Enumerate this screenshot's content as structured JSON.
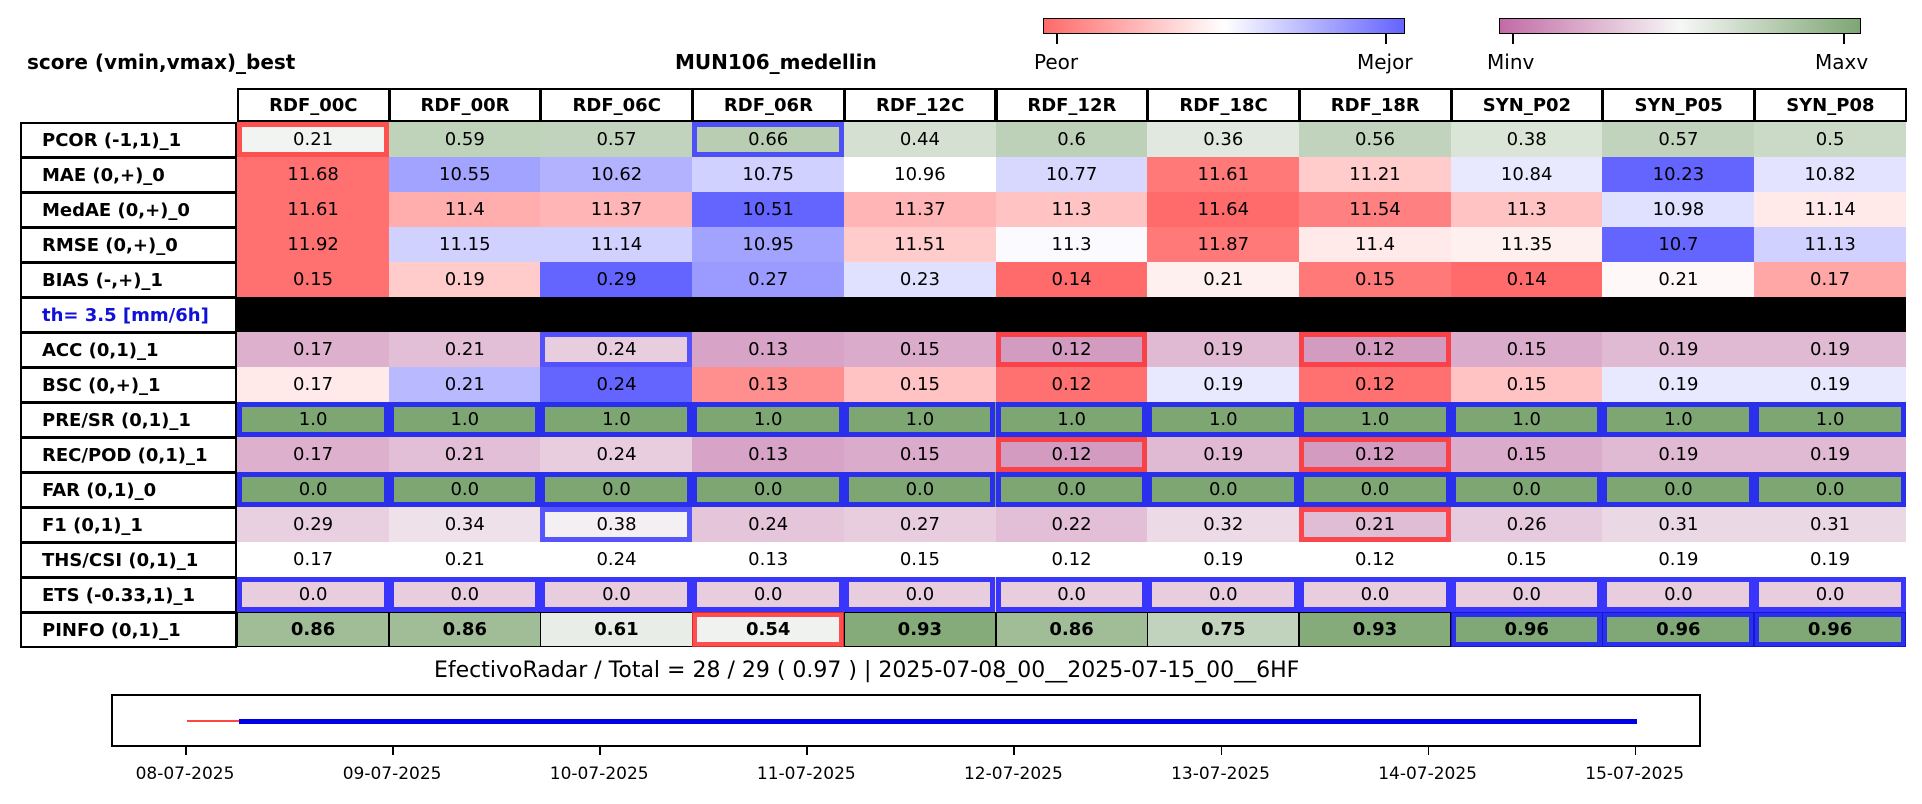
{
  "header": {
    "left_title": "score (vmin,vmax)_best",
    "center_title": "MUN106_medellin"
  },
  "colorbars": {
    "diverging": {
      "left_label": "Peor",
      "right_label": "Mejor",
      "colors": [
        "#ff6a6a",
        "#ffffff",
        "#6464ff"
      ]
    },
    "sequential": {
      "left_label": "Minv",
      "right_label": "Maxv",
      "colors": [
        "#c26ba5",
        "#f7f7f7",
        "#7ea673"
      ]
    }
  },
  "chart_data": {
    "type": "table",
    "columns": [
      "RDF_00C",
      "RDF_00R",
      "RDF_06C",
      "RDF_06R",
      "RDF_12C",
      "RDF_12R",
      "RDF_18C",
      "RDF_18R",
      "SYN_P02",
      "SYN_P05",
      "SYN_P08"
    ],
    "rows": [
      {
        "label": "PCOR (-1,1)_1",
        "values": [
          "0.21",
          "0.59",
          "0.57",
          "0.66",
          "0.44",
          "0.6",
          "0.36",
          "0.56",
          "0.38",
          "0.57",
          "0.5"
        ],
        "scale": "sequential",
        "level": [
          0.52,
          0.73,
          0.72,
          0.76,
          0.64,
          0.74,
          0.59,
          0.72,
          0.62,
          0.72,
          0.68
        ]
      },
      {
        "label": "MAE (0,+)_0",
        "values": [
          "11.68",
          "10.55",
          "10.62",
          "10.75",
          "10.96",
          "10.77",
          "11.61",
          "11.21",
          "10.84",
          "10.23",
          "10.82"
        ],
        "scale": "diverging",
        "level": [
          -0.95,
          0.6,
          0.5,
          0.3,
          0.0,
          0.25,
          -0.9,
          -0.35,
          0.15,
          1.0,
          0.18
        ]
      },
      {
        "label": "MedAE (0,+)_0",
        "values": [
          "11.61",
          "11.4",
          "11.37",
          "10.51",
          "11.37",
          "11.3",
          "11.64",
          "11.54",
          "11.3",
          "10.98",
          "11.14"
        ],
        "scale": "diverging",
        "level": [
          -0.95,
          -0.55,
          -0.5,
          1.0,
          -0.5,
          -0.4,
          -1.0,
          -0.85,
          -0.4,
          0.2,
          -0.15
        ]
      },
      {
        "label": "RMSE (0,+)_0",
        "values": [
          "11.92",
          "11.15",
          "11.14",
          "10.95",
          "11.51",
          "11.3",
          "11.87",
          "11.4",
          "11.35",
          "10.7",
          "11.13"
        ],
        "scale": "diverging",
        "level": [
          -0.95,
          0.3,
          0.3,
          0.6,
          -0.35,
          0.03,
          -0.9,
          -0.15,
          -0.1,
          1.0,
          0.3
        ]
      },
      {
        "label": "BIAS (-,+)_1",
        "values": [
          "0.15",
          "0.19",
          "0.29",
          "0.27",
          "0.23",
          "0.14",
          "0.21",
          "0.15",
          "0.14",
          "0.21",
          "0.17"
        ],
        "scale": "diverging",
        "level": [
          -0.95,
          -0.35,
          1.0,
          0.65,
          0.2,
          -1.0,
          -0.1,
          -0.9,
          -1.0,
          -0.05,
          -0.6
        ]
      },
      {
        "label": "th= 3.5 [mm/6h]",
        "values": [
          "",
          "",
          "",
          "",
          "",
          "",
          "",
          "",
          "",
          "",
          ""
        ],
        "scale": "separator",
        "level": []
      },
      {
        "label": "ACC (0,1)_1",
        "values": [
          "0.17",
          "0.21",
          "0.24",
          "0.13",
          "0.15",
          "0.12",
          "0.19",
          "0.12",
          "0.15",
          "0.19",
          "0.19"
        ],
        "scale": "sequential",
        "level": [
          0.25,
          0.3,
          0.35,
          0.2,
          0.23,
          0.17,
          0.28,
          0.17,
          0.23,
          0.28,
          0.28
        ]
      },
      {
        "label": "BSC (0,+)_1",
        "values": [
          "0.17",
          "0.21",
          "0.24",
          "0.13",
          "0.15",
          "0.12",
          "0.19",
          "0.12",
          "0.15",
          "0.19",
          "0.19"
        ],
        "scale": "diverging",
        "level": [
          -0.15,
          0.45,
          1.0,
          -0.75,
          -0.4,
          -0.95,
          0.15,
          -0.95,
          -0.4,
          0.15,
          0.15
        ]
      },
      {
        "label": "PRE/SR (0,1)_1",
        "values": [
          "1.0",
          "1.0",
          "1.0",
          "1.0",
          "1.0",
          "1.0",
          "1.0",
          "1.0",
          "1.0",
          "1.0",
          "1.0"
        ],
        "scale": "sequential",
        "level": [
          1,
          1,
          1,
          1,
          1,
          1,
          1,
          1,
          1,
          1,
          1
        ]
      },
      {
        "label": "REC/POD (0,1)_1",
        "values": [
          "0.17",
          "0.21",
          "0.24",
          "0.13",
          "0.15",
          "0.12",
          "0.19",
          "0.12",
          "0.15",
          "0.19",
          "0.19"
        ],
        "scale": "sequential",
        "level": [
          0.25,
          0.3,
          0.35,
          0.2,
          0.23,
          0.17,
          0.28,
          0.17,
          0.23,
          0.28,
          0.28
        ]
      },
      {
        "label": "FAR (0,1)_0",
        "values": [
          "0.0",
          "0.0",
          "0.0",
          "0.0",
          "0.0",
          "0.0",
          "0.0",
          "0.0",
          "0.0",
          "0.0",
          "0.0"
        ],
        "scale": "sequential",
        "level": [
          1,
          1,
          1,
          1,
          1,
          1,
          1,
          1,
          1,
          1,
          1
        ]
      },
      {
        "label": "F1 (0,1)_1",
        "values": [
          "0.29",
          "0.34",
          "0.38",
          "0.24",
          "0.27",
          "0.22",
          "0.32",
          "0.21",
          "0.26",
          "0.31",
          "0.31"
        ],
        "scale": "sequential",
        "level": [
          0.36,
          0.42,
          0.47,
          0.32,
          0.35,
          0.3,
          0.4,
          0.29,
          0.34,
          0.39,
          0.39
        ]
      },
      {
        "label": "THS/CSI (0,1)_1",
        "values": [
          "0.17",
          "0.21",
          "0.24",
          "0.13",
          "0.15",
          "0.12",
          "0.19",
          "0.12",
          "0.15",
          "0.19",
          "0.19"
        ],
        "scale": "none",
        "level": []
      },
      {
        "label": "ETS (-0.33,1)_1",
        "values": [
          "0.0",
          "0.0",
          "0.0",
          "0.0",
          "0.0",
          "0.0",
          "0.0",
          "0.0",
          "0.0",
          "0.0",
          "0.0"
        ],
        "scale": "sequential",
        "level": [
          0.35,
          0.35,
          0.35,
          0.35,
          0.35,
          0.35,
          0.35,
          0.35,
          0.35,
          0.35,
          0.35
        ]
      },
      {
        "label": "PINFO (0,1)_1",
        "values": [
          "0.86",
          "0.86",
          "0.61",
          "0.54",
          "0.93",
          "0.86",
          "0.75",
          "0.93",
          "0.96",
          "0.96",
          "0.96"
        ],
        "scale": "sequential",
        "bold": true,
        "level": [
          0.86,
          0.86,
          0.56,
          0.53,
          0.97,
          0.86,
          0.72,
          0.97,
          0.99,
          0.99,
          0.99
        ]
      }
    ],
    "highlights": [
      {
        "row": 0,
        "col": 0,
        "color": "#ff3333"
      },
      {
        "row": 0,
        "col": 3,
        "color": "#3a3aff"
      },
      {
        "row": 6,
        "col": 2,
        "color": "#3a3aff"
      },
      {
        "row": 6,
        "col": 5,
        "color": "#ff3333"
      },
      {
        "row": 6,
        "col": 7,
        "color": "#ff3333"
      },
      {
        "row": 8,
        "col": 0,
        "color": "#1a1aff"
      },
      {
        "row": 8,
        "col": 1,
        "color": "#1a1aff"
      },
      {
        "row": 8,
        "col": 2,
        "color": "#1a1aff"
      },
      {
        "row": 8,
        "col": 3,
        "color": "#1a1aff"
      },
      {
        "row": 8,
        "col": 4,
        "color": "#1a1aff"
      },
      {
        "row": 8,
        "col": 5,
        "color": "#1a1aff"
      },
      {
        "row": 8,
        "col": 6,
        "color": "#1a1aff"
      },
      {
        "row": 8,
        "col": 7,
        "color": "#1a1aff"
      },
      {
        "row": 8,
        "col": 8,
        "color": "#1a1aff"
      },
      {
        "row": 8,
        "col": 9,
        "color": "#1a1aff"
      },
      {
        "row": 8,
        "col": 10,
        "color": "#1a1aff"
      },
      {
        "row": 9,
        "col": 5,
        "color": "#ff3333"
      },
      {
        "row": 9,
        "col": 7,
        "color": "#ff3333"
      },
      {
        "row": 10,
        "col": 0,
        "color": "#1a1aff"
      },
      {
        "row": 10,
        "col": 1,
        "color": "#1a1aff"
      },
      {
        "row": 10,
        "col": 2,
        "color": "#1a1aff"
      },
      {
        "row": 10,
        "col": 3,
        "color": "#1a1aff"
      },
      {
        "row": 10,
        "col": 4,
        "color": "#1a1aff"
      },
      {
        "row": 10,
        "col": 5,
        "color": "#1a1aff"
      },
      {
        "row": 10,
        "col": 6,
        "color": "#1a1aff"
      },
      {
        "row": 10,
        "col": 7,
        "color": "#1a1aff"
      },
      {
        "row": 10,
        "col": 8,
        "color": "#1a1aff"
      },
      {
        "row": 10,
        "col": 9,
        "color": "#1a1aff"
      },
      {
        "row": 10,
        "col": 10,
        "color": "#1a1aff"
      },
      {
        "row": 11,
        "col": 2,
        "color": "#3a3aff"
      },
      {
        "row": 11,
        "col": 7,
        "color": "#ff3333"
      },
      {
        "row": 13,
        "col": 0,
        "color": "#1a1aff"
      },
      {
        "row": 13,
        "col": 1,
        "color": "#1a1aff"
      },
      {
        "row": 13,
        "col": 2,
        "color": "#1a1aff"
      },
      {
        "row": 13,
        "col": 3,
        "color": "#1a1aff"
      },
      {
        "row": 13,
        "col": 4,
        "color": "#1a1aff"
      },
      {
        "row": 13,
        "col": 5,
        "color": "#1a1aff"
      },
      {
        "row": 13,
        "col": 6,
        "color": "#1a1aff"
      },
      {
        "row": 13,
        "col": 7,
        "color": "#1a1aff"
      },
      {
        "row": 13,
        "col": 8,
        "color": "#1a1aff"
      },
      {
        "row": 13,
        "col": 9,
        "color": "#1a1aff"
      },
      {
        "row": 13,
        "col": 10,
        "color": "#1a1aff"
      },
      {
        "row": 14,
        "col": 3,
        "color": "#ff3333"
      },
      {
        "row": 14,
        "col": 8,
        "color": "#1a1aff"
      },
      {
        "row": 14,
        "col": 9,
        "color": "#1a1aff"
      },
      {
        "row": 14,
        "col": 10,
        "color": "#1a1aff"
      }
    ]
  },
  "summary": "EfectivoRadar / Total  =  28 / 29 ( 0.97 ) | 2025-07-08_00__2025-07-15_00__6HF",
  "timeline": {
    "labels": [
      "08-07-2025",
      "09-07-2025",
      "10-07-2025",
      "11-07-2025",
      "12-07-2025",
      "13-07-2025",
      "14-07-2025",
      "15-07-2025"
    ],
    "missing_segment": {
      "start_day": 0,
      "end_day": 0.25,
      "color": "#ff4444"
    },
    "present_segment": {
      "start_day": 0.25,
      "end_day": 7.0,
      "color": "#0000e6"
    }
  }
}
